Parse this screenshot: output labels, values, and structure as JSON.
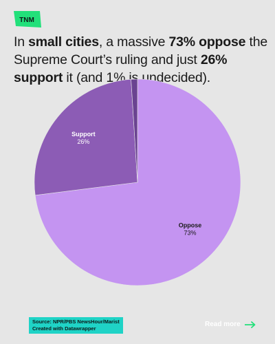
{
  "brand": {
    "logo_text": "TNM",
    "logo_color": "#22e07a"
  },
  "headline": {
    "parts": [
      {
        "text": "In ",
        "bold": false
      },
      {
        "text": "small cities",
        "bold": true
      },
      {
        "text": ", a massive ",
        "bold": false
      },
      {
        "text": "73% oppose",
        "bold": true
      },
      {
        "text": " the Supreme Court’s ruling and just ",
        "bold": false
      },
      {
        "text": "26% support",
        "bold": true
      },
      {
        "text": " it (and 1% is undecided).",
        "bold": false
      }
    ]
  },
  "chart_data": {
    "type": "pie",
    "title": "",
    "start_angle_deg": 0,
    "direction": "clockwise",
    "slices": [
      {
        "name": "Oppose",
        "value": 73,
        "value_label": "73%",
        "color": "#c494f1",
        "label_color": "#1a1a1a"
      },
      {
        "name": "Support",
        "value": 26,
        "value_label": "26%",
        "color": "#8c5cb5",
        "label_color": "#ffffff"
      },
      {
        "name": "",
        "value": 1,
        "value_label": "",
        "color": "#6a4391",
        "label_color": "#ffffff"
      }
    ],
    "legend": "none"
  },
  "footer": {
    "source_line1": "Source: NPR/PBS NewsHour/Marist",
    "source_line2": "Created with Datawrapper",
    "source_bg": "#1fd3c6",
    "read_more": "Read more",
    "arrow_color": "#22e07a"
  }
}
